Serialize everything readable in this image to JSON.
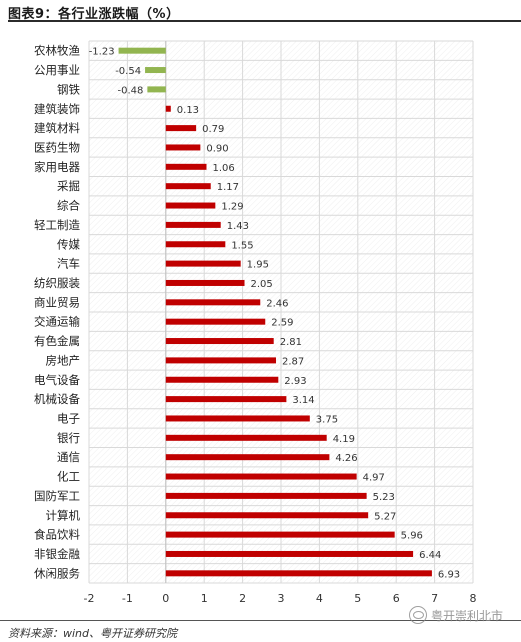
{
  "title": "图表9：各行业涨跌幅（%）",
  "source": "资料来源：wind、粤开证券研究院",
  "watermark": "粤开崇利北市",
  "colors": {
    "positive": "#c00000",
    "negative": "#92b550",
    "grid": "#d9d9d9"
  },
  "chart_data": {
    "type": "bar",
    "orientation": "horizontal",
    "categories": [
      "农林牧渔",
      "公用事业",
      "钢铁",
      "建筑装饰",
      "建筑材料",
      "医药生物",
      "家用电器",
      "采掘",
      "综合",
      "轻工制造",
      "传媒",
      "汽车",
      "纺织服装",
      "商业贸易",
      "交通运输",
      "有色金属",
      "房地产",
      "电气设备",
      "机械设备",
      "电子",
      "银行",
      "通信",
      "化工",
      "国防军工",
      "计算机",
      "食品饮料",
      "非银金融",
      "休闲服务"
    ],
    "values": [
      -1.23,
      -0.54,
      -0.48,
      0.13,
      0.79,
      0.9,
      1.06,
      1.17,
      1.29,
      1.43,
      1.55,
      1.95,
      2.05,
      2.46,
      2.59,
      2.81,
      2.87,
      2.93,
      3.14,
      3.75,
      4.19,
      4.26,
      4.97,
      5.23,
      5.27,
      5.96,
      6.44,
      6.93
    ],
    "value_labels": [
      "-1.23",
      "-0.54",
      "-0.48",
      "0.13",
      "0.79",
      "0.90",
      "1.06",
      "1.17",
      "1.29",
      "1.43",
      "1.55",
      "1.95",
      "2.05",
      "2.46",
      "2.59",
      "2.81",
      "2.87",
      "2.93",
      "3.14",
      "3.75",
      "4.19",
      "4.26",
      "4.97",
      "5.23",
      "5.27",
      "5.96",
      "6.44",
      "6.93"
    ],
    "xlim": [
      -2,
      8
    ],
    "xticks": [
      "-2",
      "-1",
      "0",
      "1",
      "2",
      "3",
      "4",
      "5",
      "6",
      "7",
      "8"
    ],
    "grid": true,
    "legend": "none"
  }
}
